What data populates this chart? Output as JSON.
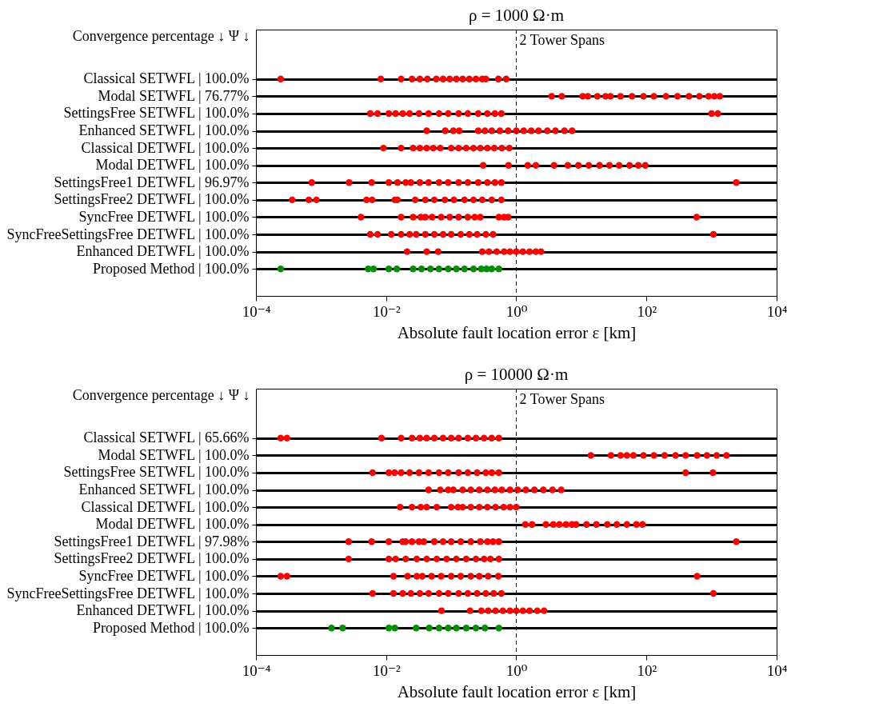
{
  "chart_data": [
    {
      "type": "scatter",
      "orientation": "horizontal",
      "title": "ρ = 1000 Ω·m",
      "xlabel": "Absolute fault location error ε [km]",
      "ylabel": "Convergence percentage ↓ Ψ ↓",
      "log": "x",
      "grid": "y",
      "marker": "circle",
      "xlim": [
        0.0001,
        10000
      ],
      "xticks": [
        {
          "value": 0.0001,
          "label": "10⁻⁴"
        },
        {
          "value": 0.01,
          "label": "10⁻²"
        },
        {
          "value": 1,
          "label": "10⁰"
        },
        {
          "value": 100,
          "label": "10²"
        },
        {
          "value": 10000,
          "label": "10⁴"
        }
      ],
      "ref_lines": [
        {
          "axis": "x",
          "value": 1,
          "label": "2 Tower Spans",
          "line_style": "dashed"
        }
      ],
      "categories": [
        "Classical SETWFL | 100.0%",
        "Modal SETWFL | 76.77%",
        "SettingsFree SETWFL | 100.0%",
        "Enhanced SETWFL | 100.0%",
        "Classical DETWFL | 100.0%",
        "Modal DETWFL | 100.0%",
        "SettingsFree1 DETWFL | 96.97%",
        "SettingsFree2 DETWFL | 100.0%",
        "SyncFree DETWFL | 100.0%",
        "SyncFreeSettingsFree DETWFL | 100.0%",
        "Enhanced DETWFL | 100.0%",
        "Proposed Method | 100.0%"
      ],
      "series": [
        {
          "colors": [
            "#ff0000",
            "#ff0000",
            "#ff0000",
            "#ff0000",
            "#ff0000",
            "#ff0000",
            "#ff0000",
            "#ff0000",
            "#ff0000",
            "#ff0000",
            "#ff0000",
            "#009000"
          ],
          "values": [
            0.00024,
            3.5,
            0.0057,
            0.042,
            0.0091,
            0.31,
            0.00072,
            0.00036,
            0.0041,
            0.0057,
            0.021,
            0.00024
          ]
        },
        {
          "colors": [
            "#ff0000",
            "#ff0000",
            "#ff0000",
            "#ff0000",
            "#ff0000",
            "#ff0000",
            "#ff0000",
            "#ff0000",
            "#ff0000",
            "#ff0000",
            "#ff0000",
            "#009000"
          ],
          "values": [
            0.0083,
            5.0,
            0.0074,
            0.081,
            0.017,
            0.76,
            0.0027,
            0.00065,
            0.017,
            0.0074,
            0.042,
            0.0053
          ]
        },
        {
          "colors": [
            "#ff0000",
            "#ff0000",
            "#ff0000",
            "#ff0000",
            "#ff0000",
            "#ff0000",
            "#ff0000",
            "#ff0000",
            "#ff0000",
            "#ff0000",
            "#ff0000",
            "#009000"
          ],
          "values": [
            0.017,
            10.5,
            0.011,
            0.108,
            0.026,
            1.5,
            0.006,
            0.00085,
            0.026,
            0.012,
            0.063,
            0.0064
          ]
        },
        {
          "colors": [
            "#ff0000",
            "#ff0000",
            "#ff0000",
            "#ff0000",
            "#ff0000",
            "#ff0000",
            "#ff0000",
            "#ff0000",
            "#ff0000",
            "#ff0000",
            "#ff0000",
            "#009000"
          ],
          "values": [
            0.025,
            12.6,
            0.014,
            0.133,
            0.033,
            2.0,
            0.011,
            0.005,
            0.034,
            0.017,
            0.3,
            0.011
          ]
        },
        {
          "colors": [
            "#ff0000",
            "#ff0000",
            "#ff0000",
            "#ff0000",
            "#ff0000",
            "#ff0000",
            "#ff0000",
            "#ff0000",
            "#ff0000",
            "#ff0000",
            "#ff0000",
            "#009000"
          ],
          "values": [
            0.033,
            17.6,
            0.018,
            0.26,
            0.042,
            3.8,
            0.015,
            0.0061,
            0.04,
            0.023,
            0.38,
            0.0146
          ]
        },
        {
          "colors": [
            "#ff0000",
            "#ff0000",
            "#ff0000",
            "#ff0000",
            "#ff0000",
            "#ff0000",
            "#ff0000",
            "#ff0000",
            "#ff0000",
            "#ff0000",
            "#ff0000",
            "#009000"
          ],
          "values": [
            0.043,
            23.5,
            0.023,
            0.33,
            0.053,
            6.2,
            0.02,
            0.0136,
            0.051,
            0.029,
            0.5,
            0.026
          ]
        },
        {
          "colors": [
            "#ff0000",
            "#ff0000",
            "#ff0000",
            "#ff0000",
            "#ff0000",
            "#ff0000",
            "#ff0000",
            "#ff0000",
            "#ff0000",
            "#ff0000",
            "#ff0000",
            "#009000"
          ],
          "values": [
            0.059,
            28,
            0.032,
            0.42,
            0.068,
            9,
            0.024,
            0.0149,
            0.07,
            0.04,
            0.65,
            0.035
          ]
        },
        {
          "colors": [
            "#ff0000",
            "#ff0000",
            "#ff0000",
            "#ff0000",
            "#ff0000",
            "#ff0000",
            "#ff0000",
            "#ff0000",
            "#ff0000",
            "#ff0000",
            "#ff0000",
            "#009000"
          ],
          "values": [
            0.075,
            40,
            0.045,
            0.56,
            0.1,
            13,
            0.033,
            0.028,
            0.095,
            0.055,
            0.8,
            0.048
          ]
        },
        {
          "colors": [
            "#ff0000",
            "#ff0000",
            "#ff0000",
            "#ff0000",
            "#ff0000",
            "#ff0000",
            "#ff0000",
            "#ff0000",
            "#ff0000",
            "#ff0000",
            "#ff0000",
            "#009000"
          ],
          "values": [
            0.095,
            60,
            0.065,
            0.75,
            0.13,
            19,
            0.045,
            0.04,
            0.13,
            0.075,
            1.0,
            0.065
          ]
        },
        {
          "colors": [
            "#ff0000",
            "#ff0000",
            "#ff0000",
            "#ff0000",
            "#ff0000",
            "#ff0000",
            "#ff0000",
            "#ff0000",
            "#ff0000",
            "#ff0000",
            "#ff0000",
            "#009000"
          ],
          "values": [
            0.12,
            90,
            0.09,
            1.0,
            0.17,
            27,
            0.065,
            0.055,
            0.18,
            0.1,
            1.26,
            0.09
          ]
        },
        {
          "colors": [
            "#ff0000",
            "#ff0000",
            "#ff0000",
            "#ff0000",
            "#ff0000",
            "#ff0000",
            "#ff0000",
            "#ff0000",
            "#ff0000",
            "#ff0000",
            "#ff0000",
            "#009000"
          ],
          "values": [
            0.15,
            130,
            0.13,
            1.3,
            0.22,
            38,
            0.09,
            0.08,
            0.23,
            0.14,
            1.6,
            0.12
          ]
        },
        {
          "colors": [
            "#ff0000",
            "#ff0000",
            "#ff0000",
            "#ff0000",
            "#ff0000",
            "#ff0000",
            "#ff0000",
            "#ff0000",
            "#ff0000",
            "#ff0000",
            "#ff0000",
            "#009000"
          ],
          "values": [
            0.19,
            200,
            0.18,
            1.7,
            0.28,
            55,
            0.13,
            0.11,
            0.28,
            0.19,
            2.0,
            0.16
          ]
        },
        {
          "colors": [
            "#ff0000",
            "#ff0000",
            "#ff0000",
            "#ff0000",
            "#ff0000",
            "#ff0000",
            "#ff0000",
            "#ff0000",
            "#ff0000",
            "#ff0000",
            "#ff0000",
            "#009000"
          ],
          "values": [
            0.24,
            300,
            0.26,
            2.2,
            0.36,
            75,
            0.18,
            0.16,
            0.54,
            0.25,
            2.4,
            0.22
          ]
        },
        {
          "colors": [
            "#ff0000",
            "#ff0000",
            "#ff0000",
            "#ff0000",
            "#ff0000",
            "#ff0000",
            "#ff0000",
            "#ff0000",
            "#ff0000",
            "#ff0000",
            null,
            "#009000"
          ],
          "values": [
            0.3,
            450,
            0.36,
            3,
            0.46,
            96,
            0.26,
            0.22,
            0.65,
            0.34,
            null,
            0.29
          ]
        },
        {
          "colors": [
            "#ff0000",
            "#ff0000",
            "#ff0000",
            "#ff0000",
            "#ff0000",
            null,
            "#ff0000",
            "#ff0000",
            "#ff0000",
            "#ff0000",
            null,
            "#009000"
          ],
          "values": [
            0.34,
            650,
            0.47,
            4,
            0.6,
            null,
            0.36,
            0.3,
            0.75,
            0.44,
            null,
            0.35
          ]
        },
        {
          "colors": [
            "#ff0000",
            "#ff0000",
            "#ff0000",
            "#ff0000",
            "#ff0000",
            null,
            "#ff0000",
            "#ff0000",
            "#ff0000",
            "#ff0000",
            null,
            "#009000"
          ],
          "values": [
            0.53,
            900,
            0.59,
            5.5,
            0.78,
            null,
            0.47,
            0.42,
            590,
            1070,
            null,
            0.42
          ]
        },
        {
          "colors": [
            "#ff0000",
            "#ff0000",
            "#ff0000",
            "#ff0000",
            null,
            null,
            "#ff0000",
            "#ff0000",
            null,
            null,
            null,
            "#009000"
          ],
          "values": [
            0.7,
            1100,
            1000,
            7.2,
            null,
            null,
            0.59,
            0.59,
            null,
            null,
            null,
            0.54
          ]
        },
        {
          "colors": [
            null,
            "#ff0000",
            "#ff0000",
            null,
            null,
            null,
            "#ff0000",
            null,
            null,
            null,
            null,
            null
          ],
          "values": [
            null,
            1340,
            1250,
            null,
            null,
            null,
            2400,
            null,
            null,
            null,
            null,
            null
          ]
        }
      ]
    },
    {
      "type": "scatter",
      "orientation": "horizontal",
      "title": "ρ = 10000 Ω·m",
      "xlabel": "Absolute fault location error ε [km]",
      "ylabel": "Convergence percentage ↓ Ψ ↓",
      "log": "x",
      "grid": "y",
      "marker": "circle",
      "xlim": [
        0.0001,
        10000
      ],
      "xticks": [
        {
          "value": 0.0001,
          "label": "10⁻⁴"
        },
        {
          "value": 0.01,
          "label": "10⁻²"
        },
        {
          "value": 1,
          "label": "10⁰"
        },
        {
          "value": 100,
          "label": "10²"
        },
        {
          "value": 10000,
          "label": "10⁴"
        }
      ],
      "ref_lines": [
        {
          "axis": "x",
          "value": 1,
          "label": "2 Tower Spans",
          "line_style": "dashed"
        }
      ],
      "categories": [
        "Classical SETWFL | 65.66%",
        "Modal SETWFL | 100.0%",
        "SettingsFree SETWFL | 100.0%",
        "Enhanced SETWFL | 100.0%",
        "Classical DETWFL | 100.0%",
        "Modal DETWFL | 100.0%",
        "SettingsFree1 DETWFL | 97.98%",
        "SettingsFree2 DETWFL | 100.0%",
        "SyncFree DETWFL | 100.0%",
        "SyncFreeSettingsFree DETWFL | 100.0%",
        "Enhanced DETWFL | 100.0%",
        "Proposed Method | 100.0%"
      ],
      "series": [
        {
          "colors": [
            "#ff0000",
            "#ff0000",
            "#ff0000",
            "#ff0000",
            "#ff0000",
            "#ff0000",
            "#ff0000",
            "#ff0000",
            "#ff0000",
            "#ff0000",
            "#ff0000",
            "#009000"
          ],
          "values": [
            0.00024,
            14,
            0.0062,
            0.045,
            0.0164,
            1.38,
            0.00265,
            0.00265,
            0.00024,
            0.0062,
            0.071,
            0.00145
          ]
        },
        {
          "colors": [
            "#ff0000",
            "#ff0000",
            "#ff0000",
            "#ff0000",
            "#ff0000",
            "#ff0000",
            "#ff0000",
            "#ff0000",
            "#ff0000",
            "#ff0000",
            "#ff0000",
            "#009000"
          ],
          "values": [
            0.0003,
            28.5,
            0.011,
            0.068,
            0.025,
            1.75,
            0.006,
            0.011,
            0.0003,
            0.013,
            0.195,
            0.00215
          ]
        },
        {
          "colors": [
            "#ff0000",
            "#ff0000",
            "#ff0000",
            "#ff0000",
            "#ff0000",
            "#ff0000",
            "#ff0000",
            "#ff0000",
            "#ff0000",
            "#ff0000",
            "#ff0000",
            "#009000"
          ],
          "values": [
            0.0085,
            40,
            0.0135,
            0.09,
            0.034,
            2.85,
            0.011,
            0.014,
            0.013,
            0.018,
            0.29,
            0.011
          ]
        },
        {
          "colors": [
            "#ff0000",
            "#ff0000",
            "#ff0000",
            "#ff0000",
            "#ff0000",
            "#ff0000",
            "#ff0000",
            "#ff0000",
            "#ff0000",
            "#ff0000",
            "#ff0000",
            "#009000"
          ],
          "values": [
            0.017,
            50,
            0.017,
            0.108,
            0.042,
            3.7,
            0.018,
            0.02,
            0.0214,
            0.024,
            0.37,
            0.0136
          ]
        },
        {
          "colors": [
            "#ff0000",
            "#ff0000",
            "#ff0000",
            "#ff0000",
            "#ff0000",
            "#ff0000",
            "#ff0000",
            "#ff0000",
            "#ff0000",
            "#ff0000",
            "#ff0000",
            "#009000"
          ],
          "values": [
            0.025,
            63,
            0.023,
            0.15,
            0.06,
            4.6,
            0.02,
            0.0295,
            0.0296,
            0.033,
            0.48,
            0.029
          ]
        },
        {
          "colors": [
            "#ff0000",
            "#ff0000",
            "#ff0000",
            "#ff0000",
            "#ff0000",
            "#ff0000",
            "#ff0000",
            "#ff0000",
            "#ff0000",
            "#ff0000",
            "#ff0000",
            "#009000"
          ],
          "values": [
            0.033,
            90,
            0.032,
            0.2,
            0.1,
            5.8,
            0.025,
            0.042,
            0.036,
            0.045,
            0.62,
            0.046
          ]
        },
        {
          "colors": [
            "#ff0000",
            "#ff0000",
            "#ff0000",
            "#ff0000",
            "#ff0000",
            "#ff0000",
            "#ff0000",
            "#ff0000",
            "#ff0000",
            "#ff0000",
            "#ff0000",
            "#009000"
          ],
          "values": [
            0.042,
            130,
            0.045,
            0.27,
            0.127,
            7.2,
            0.032,
            0.06,
            0.05,
            0.065,
            0.8,
            0.065
          ]
        },
        {
          "colors": [
            "#ff0000",
            "#ff0000",
            "#ff0000",
            "#ff0000",
            "#ff0000",
            "#ff0000",
            "#ff0000",
            "#ff0000",
            "#ff0000",
            "#ff0000",
            "#ff0000",
            "#009000"
          ],
          "values": [
            0.055,
            190,
            0.065,
            0.36,
            0.15,
            8.3,
            0.038,
            0.085,
            0.07,
            0.09,
            1.0,
            0.09
          ]
        },
        {
          "colors": [
            "#ff0000",
            "#ff0000",
            "#ff0000",
            "#ff0000",
            "#ff0000",
            "#ff0000",
            "#ff0000",
            "#ff0000",
            "#ff0000",
            "#ff0000",
            "#ff0000",
            "#009000"
          ],
          "values": [
            0.075,
            280,
            0.09,
            0.47,
            0.2,
            12,
            0.055,
            0.12,
            0.1,
            0.13,
            1.26,
            0.12
          ]
        },
        {
          "colors": [
            "#ff0000",
            "#ff0000",
            "#ff0000",
            "#ff0000",
            "#ff0000",
            "#ff0000",
            "#ff0000",
            "#ff0000",
            "#ff0000",
            "#ff0000",
            "#ff0000",
            "#009000"
          ],
          "values": [
            0.1,
            400,
            0.13,
            0.6,
            0.27,
            17,
            0.075,
            0.17,
            0.14,
            0.18,
            1.6,
            0.17
          ]
        },
        {
          "colors": [
            "#ff0000",
            "#ff0000",
            "#ff0000",
            "#ff0000",
            "#ff0000",
            "#ff0000",
            "#ff0000",
            "#ff0000",
            "#ff0000",
            "#ff0000",
            "#ff0000",
            "#009000"
          ],
          "values": [
            0.13,
            600,
            0.18,
            0.8,
            0.36,
            25,
            0.1,
            0.24,
            0.2,
            0.25,
            2.1,
            0.24
          ]
        },
        {
          "colors": [
            "#ff0000",
            "#ff0000",
            "#ff0000",
            "#ff0000",
            "#ff0000",
            "#ff0000",
            "#ff0000",
            "#ff0000",
            "#ff0000",
            "#ff0000",
            "#ff0000",
            "#009000"
          ],
          "values": [
            0.18,
            850,
            0.25,
            1.05,
            0.48,
            35,
            0.14,
            0.32,
            0.27,
            0.34,
            2.67,
            0.33
          ]
        },
        {
          "colors": [
            "#ff0000",
            "#ff0000",
            "#ff0000",
            "#ff0000",
            "#ff0000",
            "#ff0000",
            "#ff0000",
            "#ff0000",
            "#ff0000",
            "#ff0000",
            null,
            "#009000"
          ],
          "values": [
            0.24,
            1200,
            0.34,
            1.4,
            0.64,
            50,
            0.2,
            0.4,
            0.37,
            0.45,
            null,
            0.54
          ]
        },
        {
          "colors": [
            "#ff0000",
            "#ff0000",
            "#ff0000",
            "#ff0000",
            "#ff0000",
            "#ff0000",
            "#ff0000",
            "#ff0000",
            "#ff0000",
            "#ff0000",
            null,
            null
          ],
          "values": [
            0.32,
            1700,
            0.42,
            1.9,
            0.8,
            70,
            0.28,
            0.54,
            0.53,
            0.59,
            null,
            null
          ]
        },
        {
          "colors": [
            "#ff0000",
            null,
            "#ff0000",
            "#ff0000",
            "#ff0000",
            "#ff0000",
            "#ff0000",
            null,
            "#ff0000",
            "#ff0000",
            null,
            null
          ],
          "values": [
            0.42,
            null,
            0.54,
            2.6,
            1.0,
            87,
            0.36,
            null,
            600,
            1070,
            null,
            null
          ]
        },
        {
          "colors": [
            "#ff0000",
            null,
            "#ff0000",
            "#ff0000",
            null,
            null,
            "#ff0000",
            null,
            null,
            null,
            null,
            null
          ],
          "values": [
            0.54,
            null,
            400,
            3.6,
            null,
            null,
            0.44,
            null,
            null,
            null,
            null,
            null
          ]
        },
        {
          "colors": [
            null,
            null,
            "#ff0000",
            "#ff0000",
            null,
            null,
            "#ff0000",
            null,
            null,
            null,
            null,
            null
          ],
          "values": [
            null,
            null,
            1050,
            4.9,
            null,
            null,
            0.54,
            null,
            null,
            null,
            null,
            null
          ]
        },
        {
          "colors": [
            null,
            null,
            null,
            null,
            null,
            null,
            "#ff0000",
            null,
            null,
            null,
            null,
            null
          ],
          "values": [
            null,
            null,
            null,
            null,
            null,
            null,
            2400,
            null,
            null,
            null,
            null,
            null
          ]
        }
      ]
    }
  ]
}
